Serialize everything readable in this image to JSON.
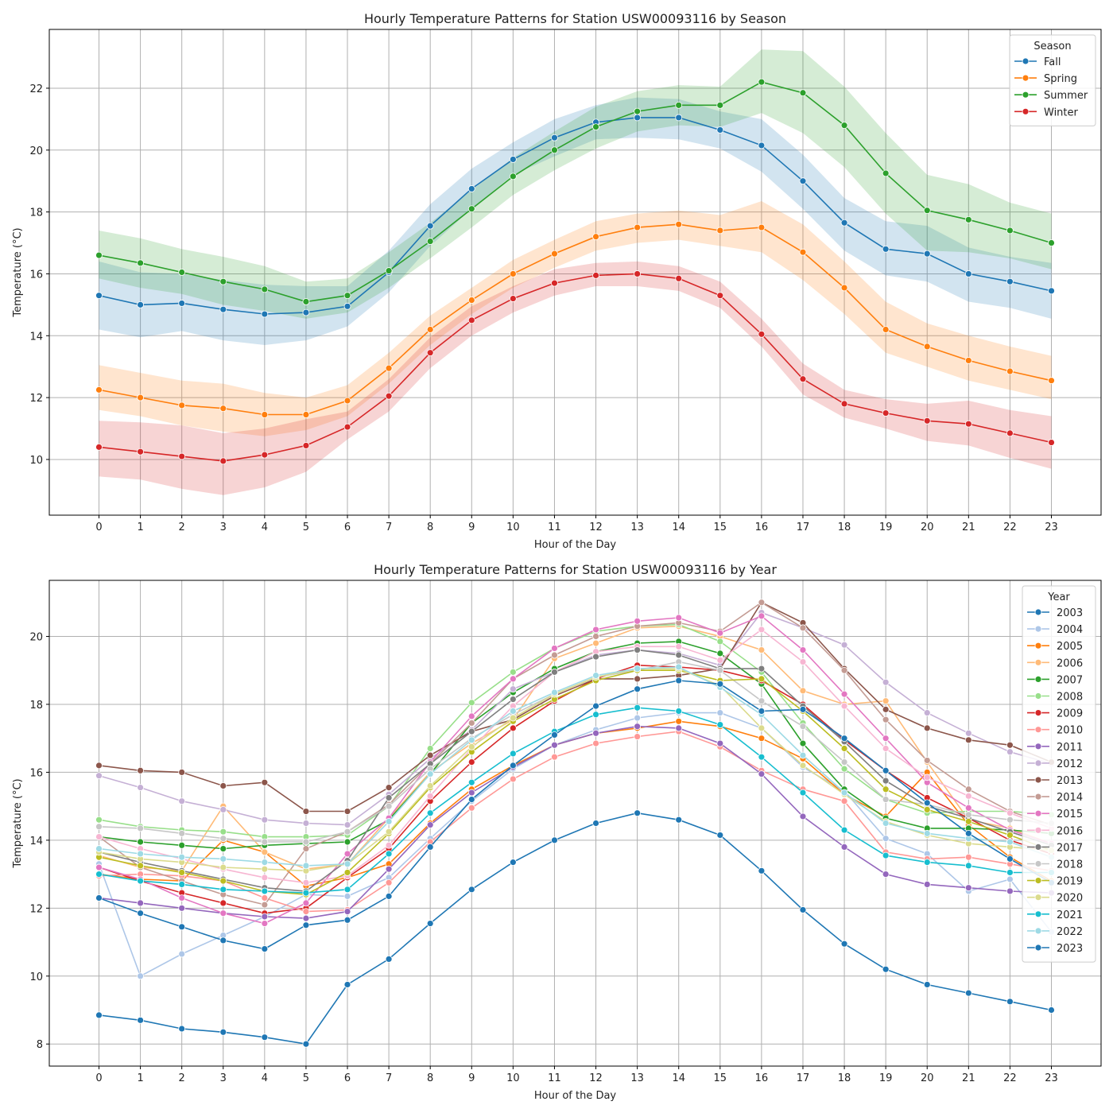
{
  "chart_data": [
    {
      "type": "line",
      "title": "Hourly Temperature Patterns for Station USW00093116 by Season",
      "xlabel": "Hour of the Day",
      "ylabel": "Temperature (°C)",
      "x": [
        0,
        1,
        2,
        3,
        4,
        5,
        6,
        7,
        8,
        9,
        10,
        11,
        12,
        13,
        14,
        15,
        16,
        17,
        18,
        19,
        20,
        21,
        22,
        23
      ],
      "xlim": [
        -1.2,
        24.2
      ],
      "ylim": [
        8.2,
        23.9
      ],
      "yticks": [
        10,
        12,
        14,
        16,
        18,
        20,
        22
      ],
      "grid": true,
      "legend": {
        "title": "Season",
        "placement": "top-right"
      },
      "series": [
        {
          "name": "Fall",
          "color": "#1f77b4",
          "values": [
            15.3,
            15.0,
            15.05,
            14.85,
            14.7,
            14.75,
            14.95,
            16.05,
            17.55,
            18.75,
            19.7,
            20.4,
            20.9,
            21.05,
            21.05,
            20.65,
            20.15,
            19.0,
            17.65,
            16.8,
            16.65,
            16.0,
            15.75,
            15.45
          ],
          "lower": [
            14.2,
            13.95,
            14.15,
            13.85,
            13.7,
            13.85,
            14.3,
            15.4,
            16.9,
            18.1,
            19.2,
            19.8,
            20.35,
            20.4,
            20.35,
            20.05,
            19.3,
            18.1,
            16.75,
            15.95,
            15.75,
            15.1,
            14.9,
            14.55
          ],
          "upper": [
            16.4,
            16.05,
            16.0,
            15.8,
            15.65,
            15.6,
            15.6,
            16.75,
            18.25,
            19.4,
            20.25,
            21.0,
            21.45,
            21.7,
            21.65,
            21.25,
            21.0,
            19.85,
            18.45,
            17.7,
            17.55,
            16.85,
            16.55,
            16.35
          ]
        },
        {
          "name": "Spring",
          "color": "#ff7f0e",
          "values": [
            12.25,
            12.0,
            11.75,
            11.65,
            11.45,
            11.45,
            11.9,
            12.95,
            14.2,
            15.15,
            16.0,
            16.65,
            17.2,
            17.5,
            17.6,
            17.4,
            17.5,
            16.7,
            15.55,
            14.2,
            13.65,
            13.2,
            12.85,
            12.55
          ],
          "lower": [
            11.6,
            11.4,
            11.1,
            10.9,
            10.75,
            10.95,
            11.4,
            12.45,
            13.7,
            14.7,
            15.55,
            16.2,
            16.75,
            17.0,
            17.1,
            16.9,
            16.7,
            15.8,
            14.7,
            13.45,
            13.0,
            12.55,
            12.25,
            11.95
          ],
          "upper": [
            13.05,
            12.8,
            12.55,
            12.45,
            12.15,
            12.0,
            12.4,
            13.45,
            14.65,
            15.55,
            16.45,
            17.1,
            17.7,
            17.95,
            18.05,
            17.9,
            18.35,
            17.6,
            16.4,
            15.1,
            14.4,
            14.0,
            13.65,
            13.35
          ]
        },
        {
          "name": "Summer",
          "color": "#2ca02c",
          "values": [
            16.6,
            16.35,
            16.05,
            15.75,
            15.5,
            15.1,
            15.3,
            16.1,
            17.05,
            18.1,
            19.15,
            20.0,
            20.75,
            21.25,
            21.45,
            21.45,
            22.2,
            21.85,
            20.8,
            19.25,
            18.05,
            17.75,
            17.4,
            17.0
          ],
          "lower": [
            15.85,
            15.55,
            15.35,
            15.0,
            14.8,
            14.55,
            14.75,
            15.55,
            16.5,
            17.5,
            18.55,
            19.35,
            20.05,
            20.6,
            20.8,
            20.75,
            21.2,
            20.55,
            19.45,
            17.95,
            16.75,
            16.7,
            16.5,
            16.15
          ],
          "upper": [
            17.4,
            17.15,
            16.8,
            16.55,
            16.25,
            15.75,
            15.85,
            16.7,
            17.65,
            18.7,
            19.75,
            20.6,
            21.4,
            21.9,
            22.1,
            22.05,
            23.25,
            23.2,
            22.05,
            20.55,
            19.2,
            18.9,
            18.3,
            17.95
          ]
        },
        {
          "name": "Winter",
          "color": "#d62728",
          "values": [
            10.4,
            10.25,
            10.1,
            9.95,
            10.15,
            10.45,
            11.05,
            12.05,
            13.45,
            14.5,
            15.2,
            15.7,
            15.95,
            16.0,
            15.85,
            15.3,
            14.05,
            12.6,
            11.8,
            11.5,
            11.25,
            11.15,
            10.85,
            10.55
          ],
          "lower": [
            9.45,
            9.35,
            9.05,
            8.85,
            9.1,
            9.6,
            10.65,
            11.55,
            12.95,
            14.0,
            14.75,
            15.3,
            15.6,
            15.6,
            15.45,
            14.9,
            13.65,
            12.1,
            11.35,
            11.0,
            10.6,
            10.45,
            10.05,
            9.7
          ],
          "upper": [
            11.25,
            11.2,
            11.1,
            10.85,
            11.0,
            11.3,
            11.55,
            12.6,
            13.95,
            14.95,
            15.6,
            16.15,
            16.35,
            16.4,
            16.25,
            15.75,
            14.55,
            13.1,
            12.25,
            11.95,
            11.8,
            11.9,
            11.6,
            11.4
          ]
        }
      ]
    },
    {
      "type": "line",
      "title": "Hourly Temperature Patterns for Station USW00093116 by Year",
      "xlabel": "Hour of the Day",
      "ylabel": "Temperature (°C)",
      "x": [
        0,
        1,
        2,
        3,
        4,
        5,
        6,
        7,
        8,
        9,
        10,
        11,
        12,
        13,
        14,
        15,
        16,
        17,
        18,
        19,
        20,
        21,
        22,
        23
      ],
      "xlim": [
        -1.2,
        24.2
      ],
      "ylim": [
        7.35,
        21.65
      ],
      "yticks": [
        8,
        10,
        12,
        14,
        16,
        18,
        20
      ],
      "grid": true,
      "legend": {
        "title": "Year",
        "placement": "top-right"
      },
      "series": [
        {
          "name": "2003",
          "color": "#1f77b4",
          "values": [
            8.85,
            8.7,
            8.45,
            8.35,
            8.2,
            8.0,
            9.75,
            10.5,
            11.55,
            12.55,
            13.35,
            14.0,
            14.5,
            14.8,
            14.6,
            14.15,
            13.1,
            11.95,
            10.95,
            10.2,
            9.75,
            9.5,
            9.25,
            9.0
          ]
        },
        {
          "name": "2004",
          "color": "#aec7e8",
          "values": [
            13.3,
            10.0,
            10.65,
            11.2,
            11.75,
            12.4,
            12.35,
            12.9,
            14.05,
            15.15,
            16.1,
            16.8,
            17.25,
            17.6,
            17.75,
            17.75,
            17.3,
            16.15,
            15.45,
            14.05,
            13.6,
            12.5,
            12.85,
            11.3
          ]
        },
        {
          "name": "2005",
          "color": "#ff7f0e",
          "values": [
            13.0,
            12.85,
            12.8,
            14.0,
            13.65,
            12.65,
            12.9,
            13.3,
            14.5,
            15.5,
            16.2,
            16.8,
            17.15,
            17.3,
            17.5,
            17.35,
            17.0,
            16.4,
            15.35,
            14.7,
            16.0,
            14.45,
            13.5,
            12.8
          ]
        },
        {
          "name": "2006",
          "color": "#ffbb78",
          "values": [
            13.55,
            13.2,
            13.1,
            15.0,
            13.65,
            13.15,
            13.3,
            14.65,
            16.0,
            16.85,
            17.55,
            19.35,
            19.8,
            20.25,
            20.3,
            20.0,
            19.6,
            18.4,
            18.0,
            18.1,
            16.3,
            14.6,
            14.35,
            13.9
          ]
        },
        {
          "name": "2007",
          "color": "#2ca02c",
          "values": [
            14.1,
            13.95,
            13.85,
            13.75,
            13.85,
            13.9,
            13.95,
            14.6,
            15.95,
            17.45,
            18.35,
            19.05,
            19.55,
            19.8,
            19.85,
            19.5,
            18.6,
            16.85,
            15.5,
            14.65,
            14.35,
            14.35,
            14.3,
            14.2
          ]
        },
        {
          "name": "2008",
          "color": "#98df8a",
          "values": [
            14.6,
            14.4,
            14.3,
            14.25,
            14.1,
            14.1,
            14.15,
            15.0,
            16.7,
            18.05,
            18.95,
            19.65,
            20.15,
            20.3,
            20.35,
            19.85,
            18.95,
            17.45,
            16.1,
            15.2,
            14.8,
            14.85,
            14.85,
            14.75
          ]
        },
        {
          "name": "2009",
          "color": "#d62728",
          "values": [
            13.2,
            12.8,
            12.45,
            12.15,
            11.85,
            12.0,
            12.9,
            13.75,
            15.15,
            16.3,
            17.3,
            18.1,
            18.75,
            19.15,
            19.1,
            19.0,
            18.7,
            18.0,
            16.95,
            16.05,
            15.25,
            14.65,
            14.0,
            13.6
          ]
        },
        {
          "name": "2010",
          "color": "#ff9896",
          "values": [
            12.95,
            13.0,
            12.95,
            12.8,
            12.3,
            11.9,
            11.95,
            12.75,
            13.95,
            14.95,
            15.8,
            16.45,
            16.85,
            17.05,
            17.2,
            16.75,
            16.05,
            15.5,
            15.15,
            13.65,
            13.45,
            13.5,
            13.3,
            13.1
          ]
        },
        {
          "name": "2011",
          "color": "#9467bd",
          "values": [
            12.3,
            12.15,
            12.0,
            11.85,
            11.75,
            11.7,
            11.9,
            13.15,
            14.45,
            15.4,
            16.15,
            16.8,
            17.15,
            17.35,
            17.3,
            16.85,
            15.95,
            14.7,
            13.8,
            13.0,
            12.7,
            12.6,
            12.5,
            12.45
          ]
        },
        {
          "name": "2012",
          "color": "#c5b0d5",
          "values": [
            15.9,
            15.55,
            15.15,
            14.9,
            14.6,
            14.5,
            14.45,
            15.35,
            16.4,
            17.25,
            18.45,
            18.95,
            19.45,
            19.6,
            19.5,
            19.15,
            20.7,
            20.25,
            19.75,
            18.65,
            17.75,
            17.15,
            16.6,
            16.25
          ]
        },
        {
          "name": "2013",
          "color": "#8c564b",
          "values": [
            16.2,
            16.05,
            16.0,
            15.6,
            15.7,
            14.85,
            14.85,
            15.55,
            16.5,
            17.2,
            17.55,
            18.25,
            18.75,
            18.75,
            18.85,
            19.05,
            21.0,
            20.4,
            19.05,
            17.85,
            17.3,
            16.95,
            16.8,
            16.3
          ]
        },
        {
          "name": "2014",
          "color": "#c49c94",
          "values": [
            14.1,
            13.2,
            12.8,
            12.4,
            12.1,
            13.75,
            14.25,
            15.05,
            16.25,
            17.45,
            18.75,
            19.45,
            20.0,
            20.3,
            20.4,
            20.15,
            21.0,
            20.25,
            19.0,
            17.55,
            16.35,
            15.5,
            14.85,
            14.45
          ]
        },
        {
          "name": "2015",
          "color": "#e377c2",
          "values": [
            13.2,
            12.85,
            12.3,
            11.85,
            11.55,
            12.15,
            13.6,
            14.65,
            16.3,
            17.65,
            18.75,
            19.65,
            20.2,
            20.45,
            20.55,
            20.1,
            20.6,
            19.6,
            18.3,
            17.0,
            15.7,
            14.95,
            14.3,
            13.9
          ]
        },
        {
          "name": "2016",
          "color": "#f7b6d2",
          "values": [
            14.1,
            13.75,
            13.45,
            13.15,
            12.9,
            12.75,
            12.95,
            13.85,
            15.3,
            16.7,
            17.95,
            18.95,
            19.55,
            19.7,
            19.7,
            19.3,
            20.2,
            19.25,
            17.95,
            16.7,
            15.85,
            15.3,
            14.8,
            14.35
          ]
        },
        {
          "name": "2017",
          "color": "#7f7f7f",
          "values": [
            13.65,
            13.35,
            13.1,
            12.85,
            12.6,
            12.5,
            13.4,
            15.25,
            16.25,
            17.2,
            18.15,
            18.95,
            19.4,
            19.6,
            19.45,
            19.05,
            19.05,
            17.95,
            16.9,
            15.75,
            15.0,
            14.65,
            14.25,
            13.85
          ]
        },
        {
          "name": "2018",
          "color": "#c7c7c7",
          "values": [
            14.4,
            14.35,
            14.2,
            14.05,
            13.95,
            13.95,
            14.25,
            15.0,
            16.1,
            17.0,
            17.7,
            18.3,
            18.8,
            19.0,
            19.25,
            19.0,
            18.1,
            17.35,
            16.3,
            15.2,
            15.05,
            14.75,
            14.6,
            14.5
          ]
        },
        {
          "name": "2019",
          "color": "#bcbd22",
          "values": [
            13.5,
            13.25,
            13.05,
            12.8,
            12.5,
            12.4,
            13.05,
            14.2,
            15.55,
            16.6,
            17.5,
            18.15,
            18.7,
            19.0,
            19.0,
            18.7,
            18.75,
            17.8,
            16.7,
            15.5,
            14.9,
            14.55,
            14.15,
            13.7
          ]
        },
        {
          "name": "2020",
          "color": "#dbdb8d",
          "values": [
            13.65,
            13.45,
            13.35,
            13.2,
            13.15,
            13.1,
            13.3,
            14.25,
            15.6,
            16.75,
            17.6,
            18.3,
            18.8,
            19.05,
            19.05,
            18.55,
            17.3,
            16.2,
            15.35,
            14.55,
            14.15,
            13.9,
            13.8,
            13.7
          ]
        },
        {
          "name": "2021",
          "color": "#17becf",
          "values": [
            13.0,
            12.8,
            12.7,
            12.55,
            12.5,
            12.45,
            12.55,
            13.6,
            14.8,
            15.7,
            16.55,
            17.2,
            17.7,
            17.9,
            17.8,
            17.4,
            16.45,
            15.4,
            14.3,
            13.55,
            13.35,
            13.25,
            13.05,
            13.05
          ]
        },
        {
          "name": "2022",
          "color": "#9edae5",
          "values": [
            13.75,
            13.6,
            13.5,
            13.45,
            13.35,
            13.25,
            13.3,
            14.55,
            15.95,
            16.95,
            17.8,
            18.35,
            18.85,
            19.05,
            19.1,
            18.5,
            17.7,
            16.5,
            15.4,
            14.5,
            14.2,
            14.05,
            13.95,
            13.5
          ]
        },
        {
          "name": "2023",
          "color": "#1f77b4",
          "values": [
            12.3,
            11.85,
            11.45,
            11.05,
            10.8,
            11.5,
            11.65,
            12.35,
            13.8,
            15.2,
            16.2,
            17.1,
            17.95,
            18.45,
            18.7,
            18.6,
            17.8,
            17.85,
            17.0,
            16.05,
            15.1,
            14.2,
            13.45,
            12.75
          ]
        }
      ]
    }
  ]
}
